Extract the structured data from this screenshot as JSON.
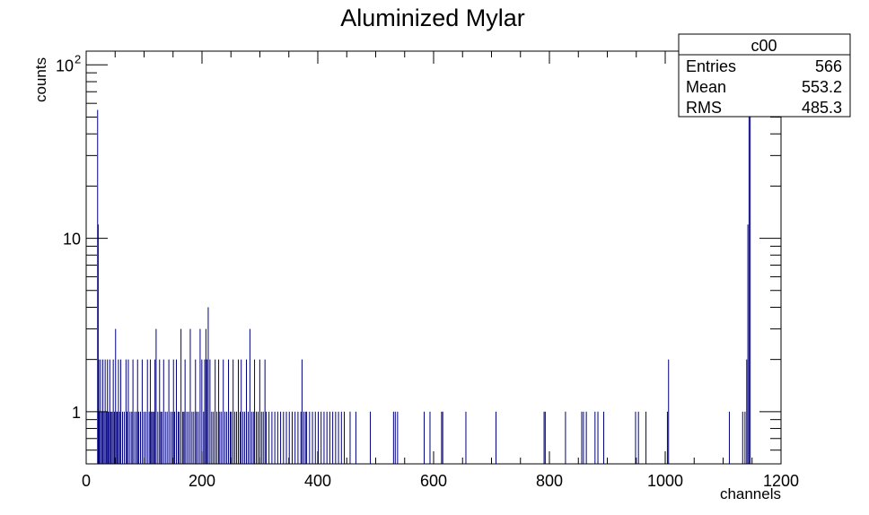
{
  "chart_data": {
    "type": "bar",
    "title": "Aluminized Mylar",
    "xlabel": "channels",
    "ylabel": "counts",
    "xlim": [
      0,
      1200
    ],
    "ylim": [
      0.5,
      120
    ],
    "yscale": "log",
    "grid": false,
    "x_ticks": [
      "0",
      "200",
      "400",
      "600",
      "800",
      "1000",
      "1200"
    ],
    "y_ticks": [
      {
        "value": 1,
        "label": "1"
      },
      {
        "value": 10,
        "label": "10"
      },
      {
        "value": 100,
        "label": "10",
        "exp": "2"
      }
    ],
    "bar_color": "#000080",
    "stats_box": {
      "name": "c00",
      "rows": [
        {
          "label": "Entries",
          "value": "566"
        },
        {
          "label": "Mean",
          "value": "553.2"
        },
        {
          "label": "RMS",
          "value": "485.3"
        }
      ]
    },
    "x": [
      19,
      20,
      21,
      22,
      24,
      26,
      28,
      30,
      32,
      34,
      36,
      37,
      38,
      40,
      42,
      44,
      46,
      48,
      50,
      52,
      53,
      55,
      57,
      59,
      62,
      65,
      68,
      70,
      72,
      75,
      78,
      80,
      83,
      86,
      88,
      90,
      93,
      96,
      99,
      102,
      105,
      108,
      110,
      112,
      114,
      116,
      118,
      120,
      123,
      126,
      128,
      130,
      133,
      136,
      139,
      142,
      145,
      148,
      150,
      152,
      155,
      158,
      160,
      163,
      166,
      168,
      170,
      173,
      176,
      179,
      182,
      185,
      188,
      190,
      193,
      196,
      199,
      202,
      204,
      206,
      208,
      210,
      213,
      216,
      219,
      222,
      225,
      228,
      230,
      233,
      236,
      239,
      242,
      245,
      248,
      250,
      253,
      256,
      259,
      262,
      265,
      267,
      270,
      273,
      276,
      279,
      282,
      285,
      288,
      290,
      293,
      296,
      299,
      302,
      305,
      308,
      310,
      315,
      320,
      325,
      330,
      335,
      340,
      345,
      350,
      355,
      360,
      365,
      370,
      372,
      375,
      378,
      380,
      385,
      390,
      395,
      400,
      405,
      410,
      415,
      420,
      425,
      430,
      435,
      440,
      445,
      455,
      465,
      490,
      530,
      533,
      537,
      583,
      593,
      613,
      615,
      655,
      707,
      790,
      792,
      827,
      855,
      858,
      863,
      878,
      883,
      893,
      948,
      953,
      966,
      1003,
      1005,
      1110,
      1133,
      1137,
      1140,
      1142,
      1144,
      1146
    ],
    "values": [
      55,
      12,
      2,
      1,
      2,
      1,
      2,
      1,
      2,
      1,
      2,
      1,
      1,
      2,
      1,
      1,
      2,
      1,
      3,
      1,
      1,
      2,
      1,
      2,
      1,
      1,
      2,
      1,
      2,
      1,
      1,
      2,
      1,
      1,
      2,
      1,
      1,
      2,
      1,
      1,
      2,
      1,
      2,
      1,
      1,
      1,
      2,
      3,
      1,
      2,
      1,
      1,
      2,
      1,
      1,
      2,
      1,
      1,
      2,
      1,
      2,
      1,
      1,
      3,
      1,
      1,
      2,
      1,
      1,
      3,
      1,
      1,
      2,
      1,
      1,
      3,
      2,
      1,
      2,
      3,
      2,
      4,
      2,
      1,
      1,
      2,
      1,
      2,
      1,
      1,
      2,
      1,
      1,
      2,
      1,
      1,
      2,
      1,
      1,
      2,
      1,
      2,
      1,
      1,
      2,
      1,
      3,
      1,
      1,
      2,
      1,
      1,
      2,
      1,
      1,
      2,
      1,
      1,
      1,
      1,
      1,
      1,
      1,
      1,
      1,
      1,
      1,
      1,
      1,
      2,
      1,
      1,
      1,
      1,
      1,
      1,
      1,
      1,
      1,
      1,
      1,
      1,
      1,
      1,
      1,
      1,
      1,
      1,
      1,
      1,
      1,
      1,
      1,
      1,
      1,
      1,
      1,
      1,
      1,
      1,
      1,
      1,
      1,
      1,
      1,
      1,
      1,
      1,
      1,
      1,
      1,
      2,
      1,
      1,
      1,
      2,
      12,
      60,
      60
    ]
  }
}
